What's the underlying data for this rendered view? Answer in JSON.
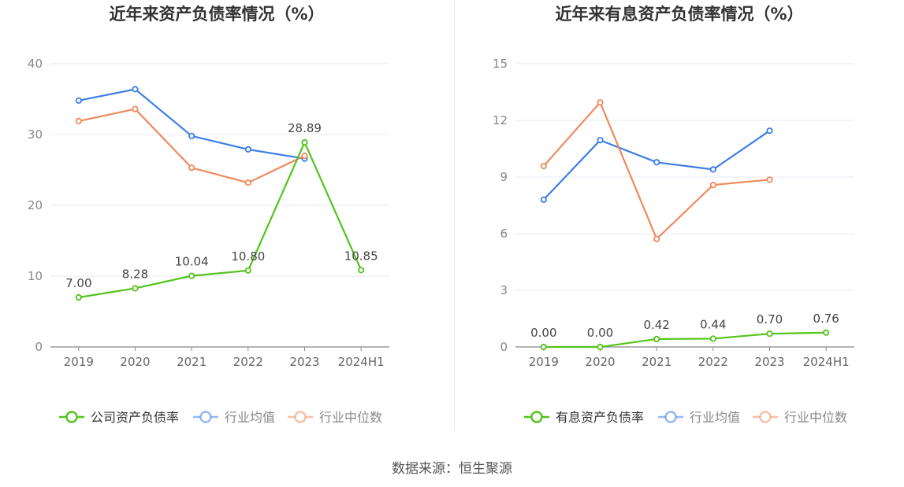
{
  "source_text": "数据来源：恒生聚源",
  "chart_data": [
    {
      "type": "line",
      "title": "近年来资产负债率情况（%）",
      "categories": [
        "2019",
        "2020",
        "2021",
        "2022",
        "2023",
        "2024H1"
      ],
      "ylim": [
        0,
        40
      ],
      "yticks": [
        0,
        10,
        20,
        30,
        40
      ],
      "grid": true,
      "legend_position": "bottom",
      "series": [
        {
          "name": "公司资产负债率",
          "color": "#52c41a",
          "values": [
            7.0,
            8.28,
            10.04,
            10.8,
            28.89,
            10.85
          ],
          "labels": [
            "7.00",
            "8.28",
            "10.04",
            "10.80",
            "28.89",
            "10.85"
          ]
        },
        {
          "name": "行业均值",
          "color": "#3d7ee6",
          "values": [
            34.8,
            36.4,
            29.8,
            27.9,
            26.6,
            null
          ]
        },
        {
          "name": "行业中位数",
          "color": "#f08a5d",
          "values": [
            31.9,
            33.6,
            25.3,
            23.2,
            27.0,
            null
          ]
        }
      ]
    },
    {
      "type": "line",
      "title": "近年来有息资产负债率情况（%）",
      "categories": [
        "2019",
        "2020",
        "2021",
        "2022",
        "2023",
        "2024H1"
      ],
      "ylim": [
        0,
        15
      ],
      "yticks": [
        0,
        3,
        6,
        9,
        12,
        15
      ],
      "grid": true,
      "legend_position": "bottom",
      "series": [
        {
          "name": "有息资产负债率",
          "color": "#52c41a",
          "values": [
            0.0,
            0.0,
            0.42,
            0.44,
            0.7,
            0.76
          ],
          "labels": [
            "0.00",
            "0.00",
            "0.42",
            "0.44",
            "0.70",
            "0.76"
          ]
        },
        {
          "name": "行业均值",
          "color": "#3d7ee6",
          "values": [
            7.8,
            10.95,
            9.78,
            9.4,
            11.45,
            null
          ]
        },
        {
          "name": "行业中位数",
          "color": "#f08a5d",
          "values": [
            9.58,
            12.95,
            5.72,
            8.58,
            8.86,
            null
          ]
        }
      ]
    }
  ]
}
